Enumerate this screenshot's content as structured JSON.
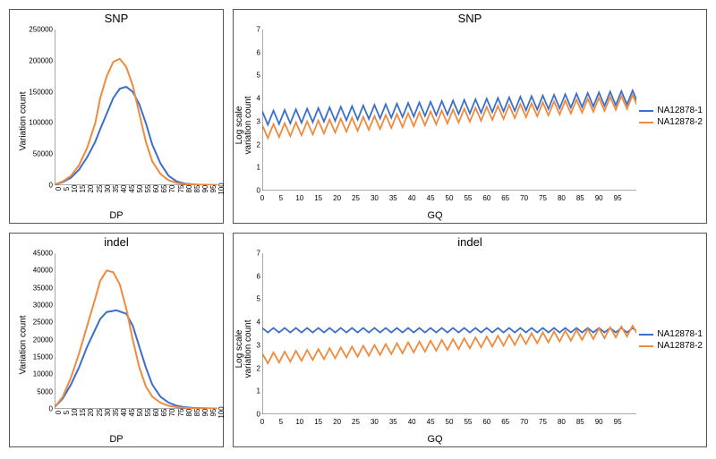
{
  "colors": {
    "series1": "#3b6fc9",
    "series2": "#f08a3c",
    "axis": "#555555",
    "background": "#ffffff"
  },
  "legend": {
    "items": [
      {
        "label": "NA12878-1",
        "color": "#3b6fc9"
      },
      {
        "label": "NA12878-2",
        "color": "#f08a3c"
      }
    ]
  },
  "font": {
    "title_size": 13,
    "label_size": 11,
    "tick_size": 8
  },
  "panels": {
    "snp_dp": {
      "title": "SNP",
      "xlabel": "DP",
      "ylabel": "Variation count",
      "xlim": [
        0,
        100
      ],
      "ylim": [
        0,
        250000
      ],
      "xticks": [
        0,
        5,
        10,
        15,
        20,
        25,
        30,
        35,
        40,
        45,
        50,
        55,
        60,
        65,
        70,
        75,
        80,
        85,
        90,
        95,
        100
      ],
      "yticks": [
        0,
        50000,
        100000,
        150000,
        200000,
        250000
      ],
      "xtick_rotated": true,
      "series": [
        {
          "color": "#3b6fc9",
          "width": 2,
          "points": [
            [
              0,
              1000
            ],
            [
              5,
              5000
            ],
            [
              10,
              12000
            ],
            [
              15,
              25000
            ],
            [
              20,
              45000
            ],
            [
              25,
              70000
            ],
            [
              28,
              90000
            ],
            [
              32,
              115000
            ],
            [
              36,
              140000
            ],
            [
              40,
              155000
            ],
            [
              44,
              158000
            ],
            [
              48,
              150000
            ],
            [
              52,
              130000
            ],
            [
              56,
              100000
            ],
            [
              60,
              65000
            ],
            [
              65,
              35000
            ],
            [
              70,
              15000
            ],
            [
              75,
              6000
            ],
            [
              80,
              2500
            ],
            [
              85,
              1200
            ],
            [
              90,
              700
            ],
            [
              95,
              400
            ],
            [
              100,
              200
            ]
          ]
        },
        {
          "color": "#f08a3c",
          "width": 2,
          "points": [
            [
              0,
              1000
            ],
            [
              5,
              6000
            ],
            [
              10,
              15000
            ],
            [
              15,
              32000
            ],
            [
              20,
              60000
            ],
            [
              25,
              100000
            ],
            [
              28,
              140000
            ],
            [
              32,
              175000
            ],
            [
              36,
              198000
            ],
            [
              40,
              203000
            ],
            [
              44,
              190000
            ],
            [
              48,
              160000
            ],
            [
              52,
              115000
            ],
            [
              56,
              70000
            ],
            [
              60,
              38000
            ],
            [
              65,
              18000
            ],
            [
              70,
              8000
            ],
            [
              75,
              3500
            ],
            [
              80,
              1800
            ],
            [
              85,
              900
            ],
            [
              90,
              500
            ],
            [
              95,
              300
            ],
            [
              100,
              150
            ]
          ]
        }
      ]
    },
    "indel_dp": {
      "title": "indel",
      "xlabel": "DP",
      "ylabel": "Variation count",
      "xlim": [
        0,
        100
      ],
      "ylim": [
        0,
        45000
      ],
      "xticks": [
        0,
        5,
        10,
        15,
        20,
        25,
        30,
        35,
        40,
        45,
        50,
        55,
        60,
        65,
        70,
        75,
        80,
        85,
        90,
        95,
        100
      ],
      "yticks": [
        0,
        5000,
        10000,
        15000,
        20000,
        25000,
        30000,
        35000,
        40000,
        45000
      ],
      "xtick_rotated": true,
      "series": [
        {
          "color": "#3b6fc9",
          "width": 2,
          "points": [
            [
              0,
              500
            ],
            [
              5,
              3000
            ],
            [
              10,
              7000
            ],
            [
              15,
              12000
            ],
            [
              20,
              18000
            ],
            [
              25,
              23000
            ],
            [
              28,
              26000
            ],
            [
              32,
              28000
            ],
            [
              38,
              28500
            ],
            [
              44,
              27500
            ],
            [
              48,
              24000
            ],
            [
              52,
              18000
            ],
            [
              56,
              12000
            ],
            [
              60,
              7000
            ],
            [
              65,
              3500
            ],
            [
              70,
              1800
            ],
            [
              75,
              900
            ],
            [
              80,
              500
            ],
            [
              85,
              300
            ],
            [
              90,
              200
            ],
            [
              95,
              150
            ],
            [
              100,
              100
            ]
          ]
        },
        {
          "color": "#f08a3c",
          "width": 2,
          "points": [
            [
              0,
              500
            ],
            [
              5,
              3500
            ],
            [
              10,
              9000
            ],
            [
              15,
              16000
            ],
            [
              20,
              24000
            ],
            [
              25,
              32000
            ],
            [
              28,
              37000
            ],
            [
              32,
              40000
            ],
            [
              36,
              39500
            ],
            [
              40,
              36000
            ],
            [
              44,
              29000
            ],
            [
              48,
              20000
            ],
            [
              52,
              12000
            ],
            [
              56,
              6500
            ],
            [
              60,
              3500
            ],
            [
              65,
              1800
            ],
            [
              70,
              900
            ],
            [
              75,
              500
            ],
            [
              80,
              300
            ],
            [
              85,
              200
            ],
            [
              90,
              150
            ],
            [
              95,
              120
            ],
            [
              100,
              100
            ]
          ]
        }
      ]
    },
    "snp_gq": {
      "title": "SNP",
      "xlabel": "GQ",
      "ylabel": "Log scale variation count",
      "ylabel_twoline": true,
      "xlim": [
        0,
        100
      ],
      "ylim": [
        0,
        7
      ],
      "xticks": [
        0,
        5,
        10,
        15,
        20,
        25,
        30,
        35,
        40,
        45,
        50,
        55,
        60,
        65,
        70,
        75,
        80,
        85,
        90,
        95
      ],
      "yticks": [
        0,
        1,
        2,
        3,
        4,
        5,
        6,
        7
      ],
      "xtick_rotated": false,
      "has_legend": true,
      "osc": {
        "period": 3,
        "n": 34
      },
      "series": [
        {
          "color": "#3b6fc9",
          "width": 1.8,
          "base_start": 3.0,
          "base_end": 3.9,
          "amp": 0.45,
          "final": 6.5,
          "offset": 0
        },
        {
          "color": "#f08a3c",
          "width": 1.8,
          "base_start": 2.3,
          "base_end": 3.6,
          "amp": 0.55,
          "final": 6.6,
          "offset": 0.15
        }
      ]
    },
    "indel_gq": {
      "title": "indel",
      "xlabel": "GQ",
      "ylabel": "Log scale variation count",
      "ylabel_twoline": true,
      "xlim": [
        0,
        100
      ],
      "ylim": [
        0,
        7
      ],
      "xticks": [
        0,
        5,
        10,
        15,
        20,
        25,
        30,
        35,
        40,
        45,
        50,
        55,
        60,
        65,
        70,
        75,
        80,
        85,
        90,
        95
      ],
      "yticks": [
        0,
        1,
        2,
        3,
        4,
        5,
        6,
        7
      ],
      "xtick_rotated": false,
      "has_legend": true,
      "osc": {
        "period": 3,
        "n": 34
      },
      "series": [
        {
          "color": "#3b6fc9",
          "width": 1.8,
          "base_start": 3.6,
          "base_end": 3.6,
          "amp": 0.15,
          "final": 5.6,
          "offset": 0
        },
        {
          "color": "#f08a3c",
          "width": 1.8,
          "base_start": 2.2,
          "base_end": 3.4,
          "amp": 0.45,
          "final": 5.9,
          "offset": 0.15
        }
      ]
    }
  }
}
